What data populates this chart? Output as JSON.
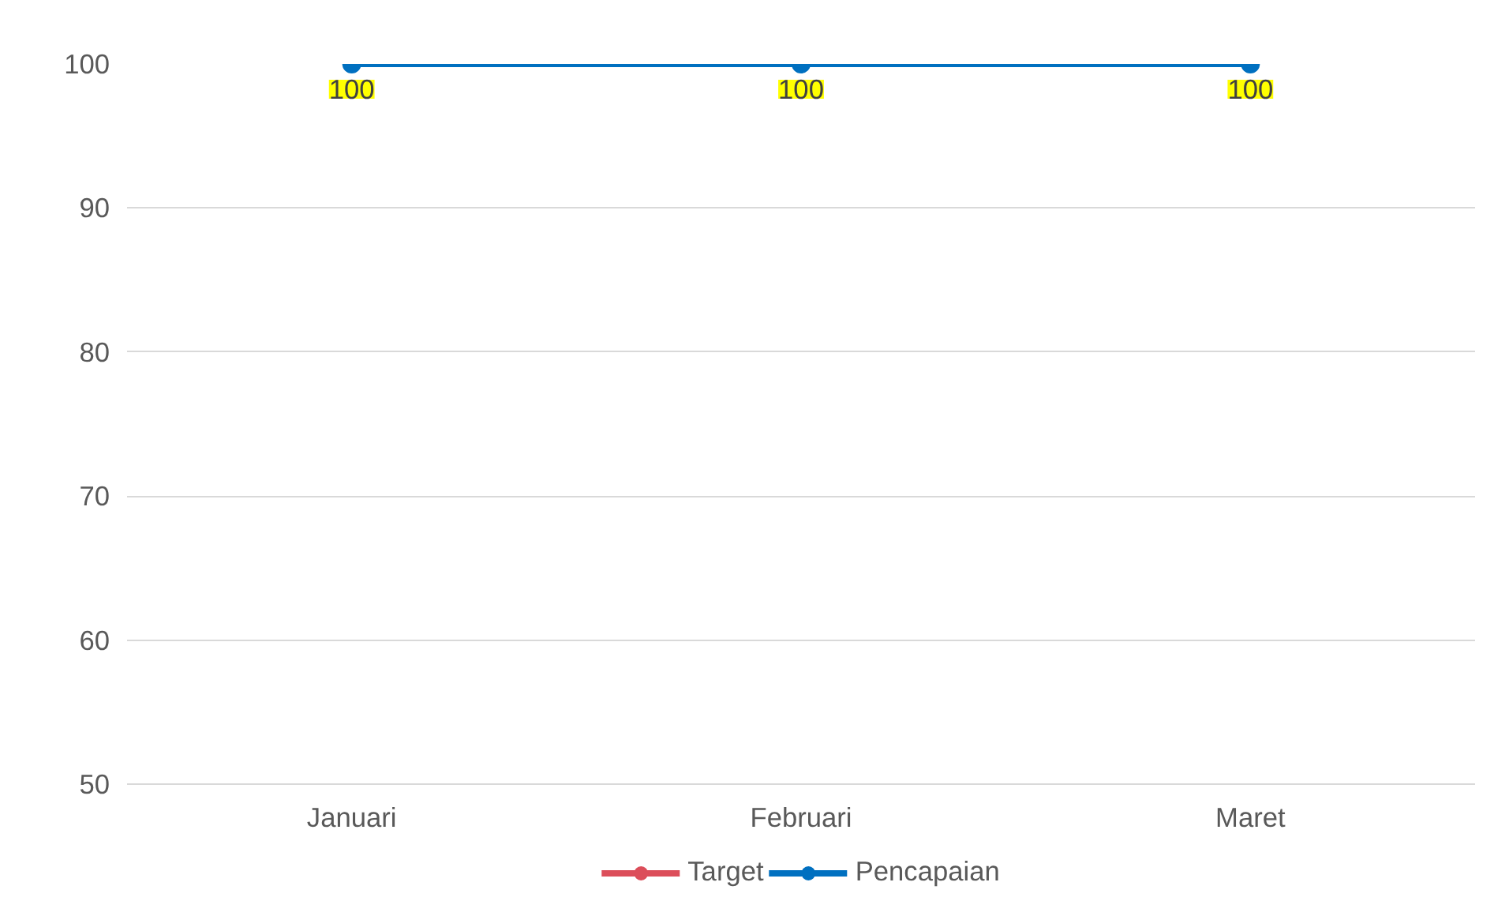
{
  "chart_data": {
    "type": "line",
    "categories": [
      "Januari",
      "Februari",
      "Maret"
    ],
    "series": [
      {
        "name": "Target",
        "color": "#dc4e5a",
        "values": [
          null,
          null,
          null
        ]
      },
      {
        "name": "Pencapaian",
        "color": "#0070c0",
        "values": [
          100,
          100,
          100
        ]
      }
    ],
    "ylim": [
      50,
      100
    ],
    "yticks": [
      50,
      60,
      70,
      80,
      90,
      100
    ],
    "grid": "y",
    "legend": "bottom",
    "marker": "circle",
    "data_labels": true
  }
}
